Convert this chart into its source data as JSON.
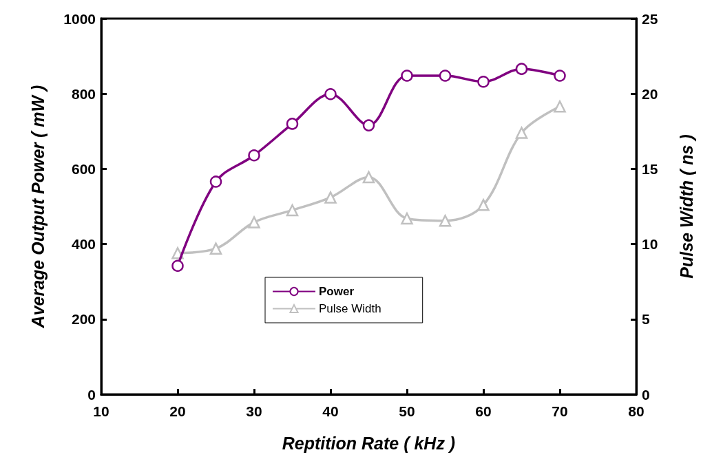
{
  "chart_data": {
    "type": "line",
    "xlabel": "Reptition Rate ( kHz )",
    "ylabel": "Average Output Power ( mW )",
    "y2label": "Pulse Width ( ns )",
    "x": [
      20,
      25,
      30,
      35,
      40,
      45,
      50,
      55,
      60,
      65,
      70
    ],
    "series": [
      {
        "name": "Power",
        "color": "#800080",
        "marker": "circle",
        "values": [
          342,
          566,
          636,
          720,
          799,
          716,
          848,
          848,
          832,
          866,
          848
        ]
      },
      {
        "name": "Pulse Width",
        "color": "#c0c0c0",
        "marker": "triangle",
        "axis": "y2",
        "values": [
          9.4,
          9.7,
          11.45,
          12.25,
          13.1,
          14.45,
          11.7,
          11.55,
          12.6,
          17.4,
          19.15
        ]
      }
    ],
    "xlim": [
      10,
      80
    ],
    "xticks": [
      10,
      20,
      30,
      40,
      50,
      60,
      70,
      80
    ],
    "ylim": [
      0,
      1000
    ],
    "yticks": [
      0,
      200,
      400,
      600,
      800,
      1000
    ],
    "y2lim": [
      0,
      25
    ],
    "y2ticks": [
      0,
      5,
      10,
      15,
      20,
      25
    ],
    "grid": false,
    "legend": "center",
    "line_style": "solid"
  }
}
